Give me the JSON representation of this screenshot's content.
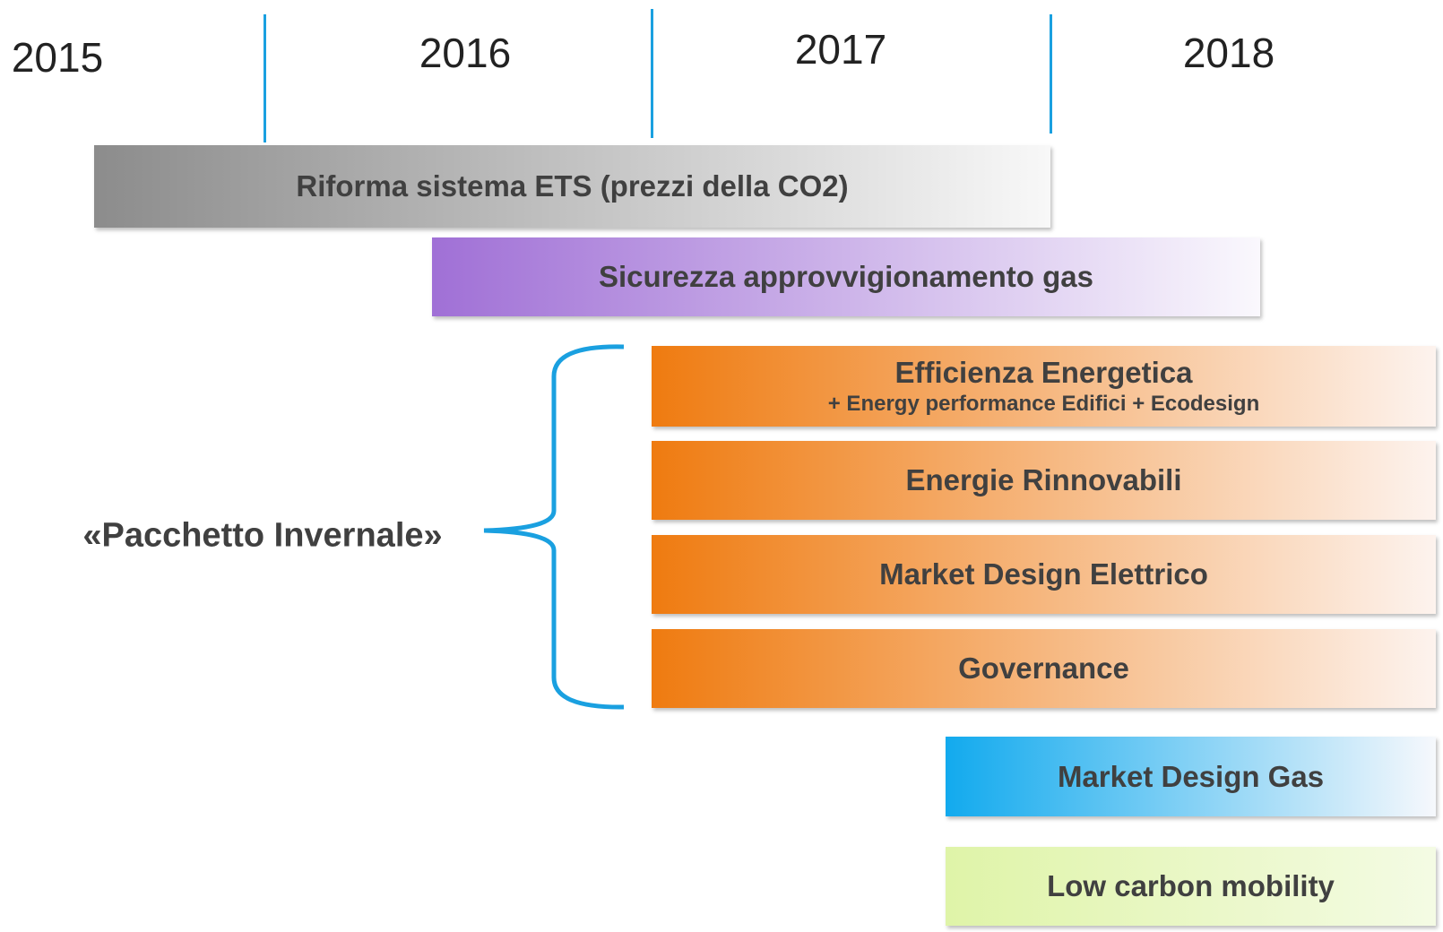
{
  "timeline": {
    "years": [
      "2015",
      "2016",
      "2017",
      "2018"
    ]
  },
  "bars": [
    {
      "label": "Riforma sistema ETS (prezzi della CO2)"
    },
    {
      "label": "Sicurezza approvvigionamento gas"
    },
    {
      "label": "Efficienza Energetica",
      "sublabel": "+ Energy performance Edifici + Ecodesign"
    },
    {
      "label": "Energie Rinnovabili"
    },
    {
      "label": "Market Design Elettrico"
    },
    {
      "label": "Governance"
    },
    {
      "label": "Market Design Gas"
    },
    {
      "label": "Low carbon mobility"
    }
  ],
  "bracket": {
    "label": "«Pacchetto Invernale»"
  }
}
